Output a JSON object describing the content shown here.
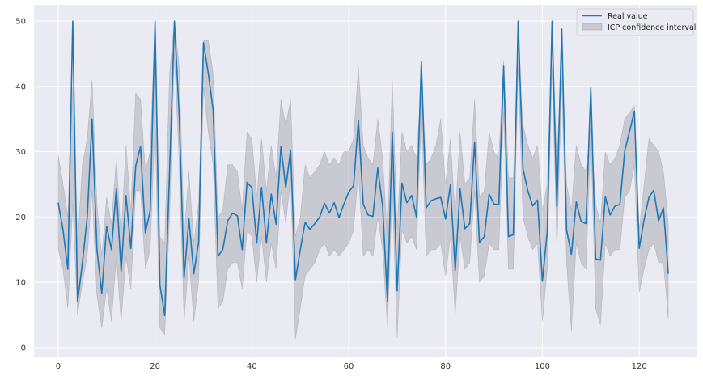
{
  "chart_data": {
    "type": "line",
    "title": "",
    "xlabel": "",
    "ylabel": "",
    "xlim": [
      -5,
      132
    ],
    "ylim": [
      -1.5,
      52.5
    ],
    "xticks": [
      0,
      20,
      40,
      60,
      80,
      100,
      120
    ],
    "yticks": [
      0,
      10,
      20,
      30,
      40,
      50
    ],
    "grid": true,
    "legend": "top-right",
    "colors": {
      "line": "#1f77b4",
      "band": "#8c8c99",
      "background": "#eaeaf2",
      "grid": "#ffffff"
    },
    "series": [
      {
        "name": "Real value",
        "kind": "line",
        "x": [
          0,
          1,
          2,
          3,
          4,
          5,
          6,
          7,
          8,
          9,
          10,
          11,
          12,
          13,
          14,
          15,
          16,
          17,
          18,
          19,
          20,
          21,
          22,
          23,
          24,
          25,
          26,
          27,
          28,
          29,
          30,
          31,
          32,
          33,
          34,
          35,
          36,
          37,
          38,
          39,
          40,
          41,
          42,
          43,
          44,
          45,
          46,
          47,
          48,
          49,
          50,
          51,
          52,
          53,
          54,
          55,
          56,
          57,
          58,
          59,
          60,
          61,
          62,
          63,
          64,
          65,
          66,
          67,
          68,
          69,
          70,
          71,
          72,
          73,
          74,
          75,
          76,
          77,
          78,
          79,
          80,
          81,
          82,
          83,
          84,
          85,
          86,
          87,
          88,
          89,
          90,
          91,
          92,
          93,
          94,
          95,
          96,
          97,
          98,
          99,
          100,
          101,
          102,
          103,
          104,
          105,
          106,
          107,
          108,
          109,
          110,
          111,
          112,
          113,
          114,
          115,
          116,
          117,
          118,
          119,
          120,
          121,
          122,
          123,
          124,
          125,
          126
        ],
        "y": [
          22.2,
          18,
          12,
          50,
          7,
          13,
          20,
          35,
          15,
          8.3,
          18.6,
          15,
          24.4,
          11.7,
          23.3,
          15.2,
          27.8,
          30.8,
          17.6,
          21,
          50,
          9.6,
          4.9,
          27,
          50,
          35.4,
          10.7,
          19.7,
          11.3,
          16.1,
          46.7,
          42,
          36.4,
          14,
          15,
          19.4,
          20.6,
          20.2,
          15,
          25.3,
          24.5,
          16,
          24.5,
          16,
          23.5,
          18.9,
          30.8,
          24.5,
          30.3,
          10.4,
          15,
          19.2,
          18.1,
          19,
          20,
          22.1,
          20.6,
          22.2,
          19.9,
          22,
          23.8,
          24.8,
          34.8,
          22,
          20.3,
          20.1,
          27.5,
          21.7,
          7.1,
          33,
          8.7,
          25.2,
          22.2,
          23.3,
          20,
          43.8,
          21.4,
          22.5,
          22.8,
          23,
          19.7,
          24.9,
          11.8,
          24.3,
          18.2,
          19,
          31.5,
          16.1,
          17,
          23.5,
          22,
          21.9,
          43.1,
          17,
          17.3,
          50,
          27.4,
          24,
          21.7,
          22.6,
          10.2,
          17.7,
          50,
          21.6,
          48.8,
          18,
          14.3,
          22.3,
          19.3,
          19,
          39.8,
          13.6,
          13.4,
          23.1,
          20.3,
          21.7,
          21.9,
          30.1,
          33.1,
          36.2,
          15.2,
          19.6,
          23,
          24.1,
          19.4,
          21.4,
          11.3
        ]
      },
      {
        "name": "ICP confidence interval",
        "kind": "band",
        "x": [
          0,
          1,
          2,
          3,
          4,
          5,
          6,
          7,
          8,
          9,
          10,
          11,
          12,
          13,
          14,
          15,
          16,
          17,
          18,
          19,
          20,
          21,
          22,
          23,
          24,
          25,
          26,
          27,
          28,
          29,
          30,
          31,
          32,
          33,
          34,
          35,
          36,
          37,
          38,
          39,
          40,
          41,
          42,
          43,
          44,
          45,
          46,
          47,
          48,
          49,
          50,
          51,
          52,
          53,
          54,
          55,
          56,
          57,
          58,
          59,
          60,
          61,
          62,
          63,
          64,
          65,
          66,
          67,
          68,
          69,
          70,
          71,
          72,
          73,
          74,
          75,
          76,
          77,
          78,
          79,
          80,
          81,
          82,
          83,
          84,
          85,
          86,
          87,
          88,
          89,
          90,
          91,
          92,
          93,
          94,
          95,
          96,
          97,
          98,
          99,
          100,
          101,
          102,
          103,
          104,
          105,
          106,
          107,
          108,
          109,
          110,
          111,
          112,
          113,
          114,
          115,
          116,
          117,
          118,
          119,
          120,
          121,
          122,
          123,
          124,
          125,
          126
        ],
        "lower": [
          15,
          12,
          6,
          22,
          5,
          10,
          14,
          24,
          8,
          3,
          9,
          4,
          14,
          4,
          14,
          9,
          24,
          24,
          12,
          15,
          34,
          3,
          2,
          20,
          45,
          28,
          4,
          14,
          4,
          10,
          40,
          33,
          28,
          6,
          7,
          12,
          13,
          13,
          9,
          18,
          17,
          10,
          17,
          10,
          16,
          12,
          24,
          19,
          26,
          1.3,
          6,
          11,
          12,
          13,
          15,
          16,
          14,
          15,
          14,
          15,
          16,
          18,
          27,
          14,
          15,
          14,
          20,
          15,
          3,
          24,
          1.5,
          18,
          16,
          17,
          15,
          36,
          14,
          15,
          15,
          16,
          11,
          17,
          5,
          17,
          12,
          13,
          24,
          10,
          11,
          16,
          15,
          15,
          36,
          12,
          12,
          43,
          20,
          17,
          15,
          16,
          4,
          12,
          43,
          15,
          41,
          13,
          2.5,
          16,
          13,
          12,
          32,
          6,
          3.5,
          16,
          14,
          15,
          15,
          23,
          24,
          28,
          8.5,
          12,
          15,
          16,
          13,
          13,
          4.5
        ],
        "upper": [
          29.5,
          25,
          20,
          40,
          16,
          28,
          32,
          41,
          22,
          14,
          23,
          19,
          29,
          17,
          31,
          21,
          39,
          38,
          27,
          30,
          50,
          17,
          16,
          42,
          50,
          43,
          17,
          27,
          16,
          22,
          47,
          47,
          42,
          20,
          21,
          28,
          28,
          27,
          21,
          33,
          32,
          23,
          32,
          24,
          31,
          26,
          38,
          34,
          38,
          17,
          20,
          28,
          26,
          27,
          28,
          30,
          28,
          29,
          28,
          30,
          30,
          32,
          43,
          31,
          29,
          28,
          35,
          29,
          17,
          41,
          18,
          33,
          30,
          31,
          29,
          41,
          28,
          29,
          31,
          35,
          25,
          32,
          20,
          33,
          25,
          26,
          38,
          23,
          24,
          33,
          30,
          29,
          44,
          26,
          26,
          46,
          34,
          31,
          29,
          31,
          21,
          25,
          47,
          29,
          45,
          25,
          21,
          31,
          28,
          27,
          34,
          22,
          19,
          30,
          28,
          29,
          31,
          35,
          36,
          37,
          18,
          25,
          32,
          31,
          30,
          27,
          19
        ]
      }
    ]
  }
}
